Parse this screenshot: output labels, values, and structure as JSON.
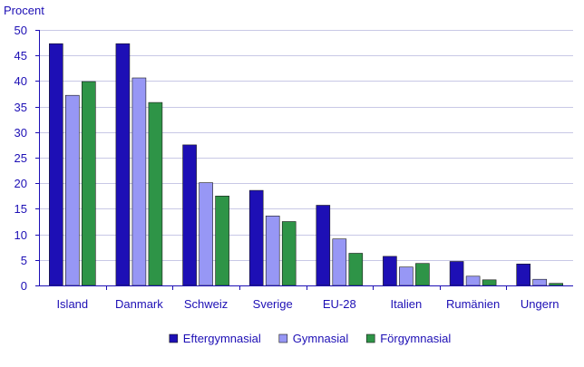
{
  "chart_data": {
    "type": "bar",
    "ylabel": "Procent",
    "xlabel": "",
    "ylim": [
      0,
      50
    ],
    "yticks": [
      0,
      5,
      10,
      15,
      20,
      25,
      30,
      35,
      40,
      45,
      50
    ],
    "grid": true,
    "legend_position": "bottom",
    "categories": [
      "Island",
      "Danmark",
      "Schweiz",
      "Sverige",
      "EU-28",
      "Italien",
      "Rumänien",
      "Ungern"
    ],
    "series": [
      {
        "name": "Eftergymnasial",
        "color": "#1D0FB5",
        "values": [
          47.3,
          47.3,
          27.5,
          18.6,
          15.7,
          5.7,
          4.7,
          4.2
        ]
      },
      {
        "name": "Gymnasial",
        "color": "#9797F5",
        "values": [
          37.2,
          40.6,
          20.1,
          13.6,
          9.1,
          3.6,
          1.8,
          1.2
        ]
      },
      {
        "name": "Förgymnasial",
        "color": "#2E9447",
        "values": [
          39.9,
          35.8,
          17.5,
          12.5,
          6.3,
          4.3,
          1.1,
          0.4
        ]
      }
    ]
  },
  "colors": {
    "axis": "#1D0FB5",
    "grid": "#C8C8E6",
    "text": "#1D0FB5"
  }
}
